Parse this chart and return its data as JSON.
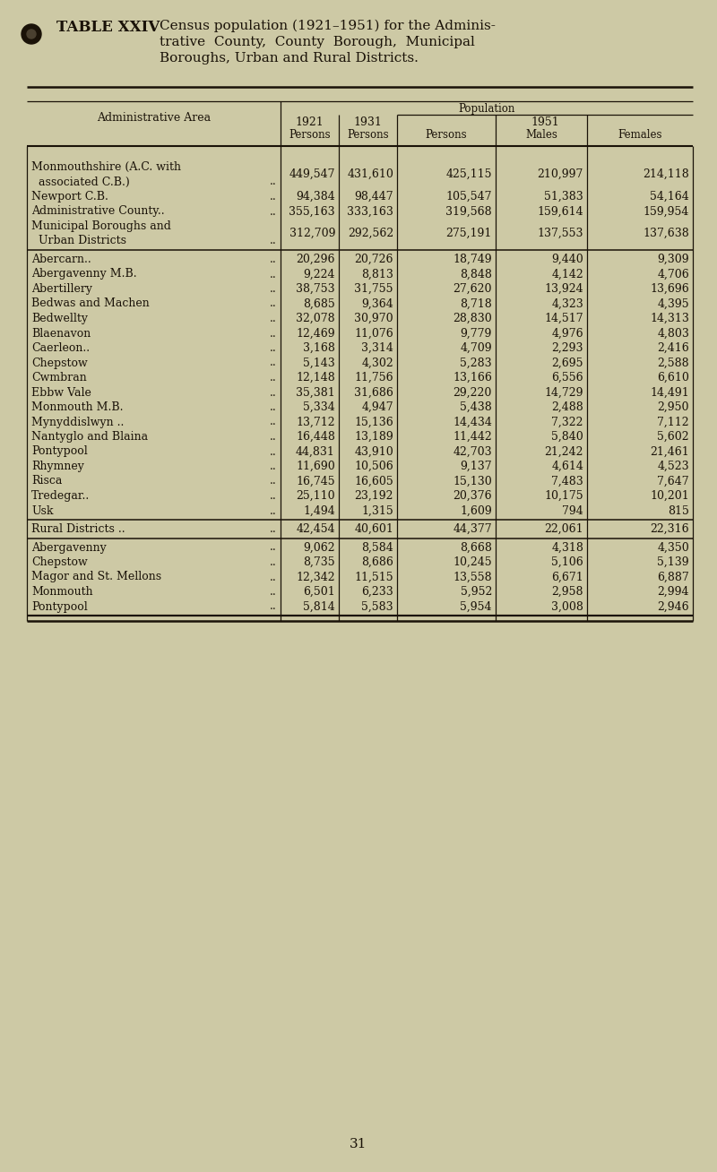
{
  "bg_color": "#cdc9a5",
  "text_color": "#1a1208",
  "title_bold": "TABLE XXIV",
  "title_rest_line1": "Census population (1921–1951) for the Adminis-",
  "title_rest_line2": "trative  County,  County  Borough,  Municipal",
  "title_rest_line3": "Boroughs, Urban and Rural Districts.",
  "rows": [
    {
      "area": "Monmouthshire (A.C. with",
      "area2": "  associated C.B.)",
      "dots": "..",
      "p1921": "449,547",
      "p1931": "431,610",
      "p1951": "425,115",
      "males": "210,997",
      "females": "214,118",
      "sep_after": false,
      "thick_sep_after": false,
      "multiline": true
    },
    {
      "area": "Newport C.B.",
      "area2": "",
      "dots": "..",
      "p1921": "94,384",
      "p1931": "98,447",
      "p1951": "105,547",
      "males": "51,383",
      "females": "54,164",
      "sep_after": false,
      "thick_sep_after": false,
      "multiline": false
    },
    {
      "area": "Administrative County..",
      "area2": "",
      "dots": "..",
      "p1921": "355,163",
      "p1931": "333,163",
      "p1951": "319,568",
      "males": "159,614",
      "females": "159,954",
      "sep_after": false,
      "thick_sep_after": false,
      "multiline": false
    },
    {
      "area": "Municipal Boroughs and",
      "area2": "  Urban Districts",
      "dots": "..",
      "p1921": "312,709",
      "p1931": "292,562",
      "p1951": "275,191",
      "males": "137,553",
      "females": "137,638",
      "sep_after": true,
      "thick_sep_after": false,
      "multiline": true
    },
    {
      "area": "Abercarn..",
      "area2": "",
      "dots": "..",
      "p1921": "20,296",
      "p1931": "20,726",
      "p1951": "18,749",
      "males": "9,440",
      "females": "9,309",
      "sep_after": false,
      "thick_sep_after": false,
      "multiline": false
    },
    {
      "area": "Abergavenny M.B.",
      "area2": "",
      "dots": "..",
      "p1921": "9,224",
      "p1931": "8,813",
      "p1951": "8,848",
      "males": "4,142",
      "females": "4,706",
      "sep_after": false,
      "thick_sep_after": false,
      "multiline": false
    },
    {
      "area": "Abertillery",
      "area2": "",
      "dots": "..",
      "p1921": "38,753",
      "p1931": "31,755",
      "p1951": "27,620",
      "males": "13,924",
      "females": "13,696",
      "sep_after": false,
      "thick_sep_after": false,
      "multiline": false
    },
    {
      "area": "Bedwas and Machen",
      "area2": "",
      "dots": "..",
      "p1921": "8,685",
      "p1931": "9,364",
      "p1951": "8,718",
      "males": "4,323",
      "females": "4,395",
      "sep_after": false,
      "thick_sep_after": false,
      "multiline": false
    },
    {
      "area": "Bedwellty",
      "area2": "",
      "dots": "..",
      "p1921": "32,078",
      "p1931": "30,970",
      "p1951": "28,830",
      "males": "14,517",
      "females": "14,313",
      "sep_after": false,
      "thick_sep_after": false,
      "multiline": false
    },
    {
      "area": "Blaenavon",
      "area2": "",
      "dots": "..",
      "p1921": "12,469",
      "p1931": "11,076",
      "p1951": "9,779",
      "males": "4,976",
      "females": "4,803",
      "sep_after": false,
      "thick_sep_after": false,
      "multiline": false
    },
    {
      "area": "Caerleon..",
      "area2": "",
      "dots": "..",
      "p1921": "3,168",
      "p1931": "3,314",
      "p1951": "4,709",
      "males": "2,293",
      "females": "2,416",
      "sep_after": false,
      "thick_sep_after": false,
      "multiline": false
    },
    {
      "area": "Chepstow",
      "area2": "",
      "dots": "..",
      "p1921": "5,143",
      "p1931": "4,302",
      "p1951": "5,283",
      "males": "2,695",
      "females": "2,588",
      "sep_after": false,
      "thick_sep_after": false,
      "multiline": false
    },
    {
      "area": "Cwmbran",
      "area2": "",
      "dots": "..",
      "p1921": "12,148",
      "p1931": "11,756",
      "p1951": "13,166",
      "males": "6,556",
      "females": "6,610",
      "sep_after": false,
      "thick_sep_after": false,
      "multiline": false
    },
    {
      "area": "Ebbw Vale",
      "area2": "",
      "dots": "..",
      "p1921": "35,381",
      "p1931": "31,686",
      "p1951": "29,220",
      "males": "14,729",
      "females": "14,491",
      "sep_after": false,
      "thick_sep_after": false,
      "multiline": false
    },
    {
      "area": "Monmouth M.B.",
      "area2": "",
      "dots": "..",
      "p1921": "5,334",
      "p1931": "4,947",
      "p1951": "5,438",
      "males": "2,488",
      "females": "2,950",
      "sep_after": false,
      "thick_sep_after": false,
      "multiline": false
    },
    {
      "area": "Mynyddislwyn ..",
      "area2": "",
      "dots": "..",
      "p1921": "13,712",
      "p1931": "15,136",
      "p1951": "14,434",
      "males": "7,322",
      "females": "7,112",
      "sep_after": false,
      "thick_sep_after": false,
      "multiline": false
    },
    {
      "area": "Nantyglo and Blaina",
      "area2": "",
      "dots": "..",
      "p1921": "16,448",
      "p1931": "13,189",
      "p1951": "11,442",
      "males": "5,840",
      "females": "5,602",
      "sep_after": false,
      "thick_sep_after": false,
      "multiline": false
    },
    {
      "area": "Pontypool",
      "area2": "",
      "dots": "..",
      "p1921": "44,831",
      "p1931": "43,910",
      "p1951": "42,703",
      "males": "21,242",
      "females": "21,461",
      "sep_after": false,
      "thick_sep_after": false,
      "multiline": false
    },
    {
      "area": "Rhymney",
      "area2": "",
      "dots": "..",
      "p1921": "11,690",
      "p1931": "10,506",
      "p1951": "9,137",
      "males": "4,614",
      "females": "4,523",
      "sep_after": false,
      "thick_sep_after": false,
      "multiline": false
    },
    {
      "area": "Risca",
      "area2": "",
      "dots": "..",
      "p1921": "16,745",
      "p1931": "16,605",
      "p1951": "15,130",
      "males": "7,483",
      "females": "7,647",
      "sep_after": false,
      "thick_sep_after": false,
      "multiline": false
    },
    {
      "area": "Tredegar..",
      "area2": "",
      "dots": "..",
      "p1921": "25,110",
      "p1931": "23,192",
      "p1951": "20,376",
      "males": "10,175",
      "females": "10,201",
      "sep_after": false,
      "thick_sep_after": false,
      "multiline": false
    },
    {
      "area": "Usk",
      "area2": "",
      "dots": "..",
      "p1921": "1,494",
      "p1931": "1,315",
      "p1951": "1,609",
      "males": "794",
      "females": "815",
      "sep_after": true,
      "thick_sep_after": false,
      "multiline": false
    },
    {
      "area": "Rural Districts ..",
      "area2": "",
      "dots": "..",
      "p1921": "42,454",
      "p1931": "40,601",
      "p1951": "44,377",
      "males": "22,061",
      "females": "22,316",
      "sep_after": true,
      "thick_sep_after": false,
      "multiline": false
    },
    {
      "area": "Abergavenny",
      "area2": "",
      "dots": "..",
      "p1921": "9,062",
      "p1931": "8,584",
      "p1951": "8,668",
      "males": "4,318",
      "females": "4,350",
      "sep_after": false,
      "thick_sep_after": false,
      "multiline": false
    },
    {
      "area": "Chepstow",
      "area2": "",
      "dots": "..",
      "p1921": "8,735",
      "p1931": "8,686",
      "p1951": "10,245",
      "males": "5,106",
      "females": "5,139",
      "sep_after": false,
      "thick_sep_after": false,
      "multiline": false
    },
    {
      "area": "Magor and St. Mellons",
      "area2": "",
      "dots": "..",
      "p1921": "12,342",
      "p1931": "11,515",
      "p1951": "13,558",
      "males": "6,671",
      "females": "6,887",
      "sep_after": false,
      "thick_sep_after": false,
      "multiline": false
    },
    {
      "area": "Monmouth",
      "area2": "",
      "dots": "..",
      "p1921": "6,501",
      "p1931": "6,233",
      "p1951": "5,952",
      "males": "2,958",
      "females": "2,994",
      "sep_after": false,
      "thick_sep_after": false,
      "multiline": false
    },
    {
      "area": "Pontypool",
      "area2": "",
      "dots": "..",
      "p1921": "5,814",
      "p1931": "5,583",
      "p1951": "5,954",
      "males": "3,008",
      "females": "2,946",
      "sep_after": false,
      "thick_sep_after": true,
      "multiline": false
    }
  ],
  "page_number": "31"
}
